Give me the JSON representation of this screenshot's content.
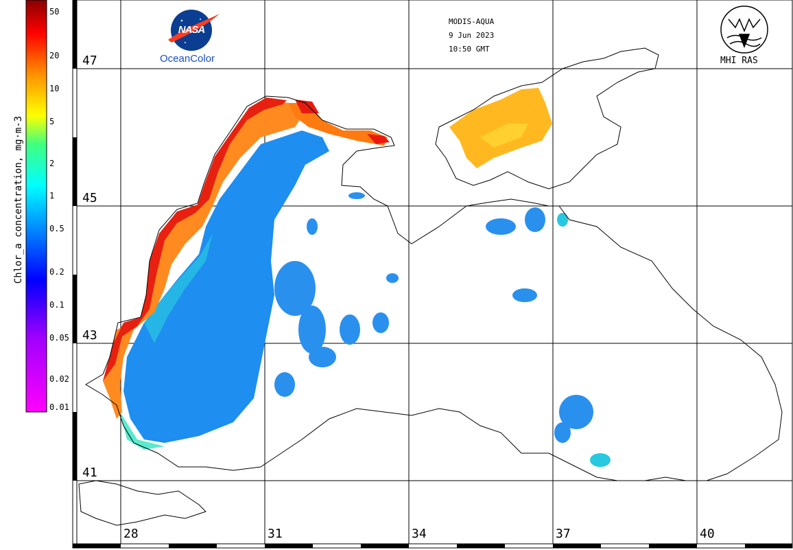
{
  "header": {
    "sensor": "MODIS-AQUA",
    "date": "9 Jun 2023",
    "time": "10:50 GMT"
  },
  "logos": {
    "nasa_mark": "NASA",
    "nasa_product": "OceanColor",
    "institute": "MHI RAS"
  },
  "colorbar": {
    "title": "Chlor_a concentration, mg·m-3",
    "ticks": [
      "50",
      "20",
      "10",
      "5",
      "2",
      "1",
      "0.5",
      "0.2",
      "0.1",
      "0.05",
      "0.02",
      "0.01"
    ],
    "scale": "log",
    "range": [
      0.01,
      50
    ]
  },
  "grid": {
    "latitudes": [
      "47",
      "45",
      "43",
      "41"
    ],
    "longitudes": [
      "28",
      "31",
      "34",
      "37",
      "40"
    ]
  },
  "colors": {
    "low": "#ff00ff",
    "mid_low": "#0000ff",
    "mid": "#00ffff",
    "mid_high": "#ffff00",
    "high": "#ff0000",
    "max": "#880000",
    "coastline": "#000000"
  },
  "icons": [
    "nasa-meatball-icon",
    "mhi-ras-emblem-icon"
  ]
}
